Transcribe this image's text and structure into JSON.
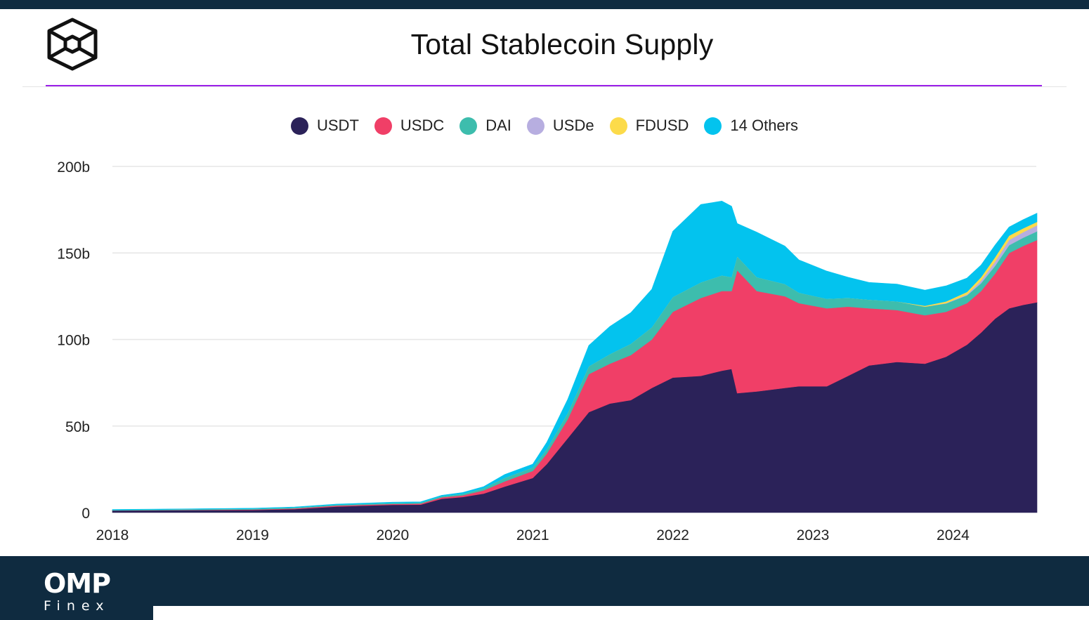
{
  "header": {
    "title": "Total Stablecoin Supply",
    "logo_icon": "the-block-cube-icon"
  },
  "footer": {
    "brand_main": "OMP",
    "brand_sub": "Finex"
  },
  "colors": {
    "top_bar": "#0f2b40",
    "accent_line": "#9b1fe8"
  },
  "chart_data": {
    "type": "area",
    "stacked": true,
    "title": "Total Stablecoin Supply",
    "xlabel": "",
    "ylabel": "",
    "unit": "billion USD",
    "ylim": [
      0,
      200
    ],
    "y_ticks": [
      {
        "value": 0,
        "label": "0"
      },
      {
        "value": 50,
        "label": "50b"
      },
      {
        "value": 100,
        "label": "100b"
      },
      {
        "value": 150,
        "label": "150b"
      },
      {
        "value": 200,
        "label": "200b"
      }
    ],
    "x_ticks": [
      "2018",
      "2019",
      "2020",
      "2021",
      "2022",
      "2023",
      "2024"
    ],
    "x_range": [
      2018.0,
      2024.6
    ],
    "legend_position": "top-center",
    "grid": true,
    "series": [
      {
        "name": "USDT",
        "color": "#2b2259",
        "points": [
          [
            2018.0,
            1.2
          ],
          [
            2019.0,
            1.5
          ],
          [
            2019.3,
            2.0
          ],
          [
            2019.6,
            3.5
          ],
          [
            2020.0,
            4.5
          ],
          [
            2020.2,
            4.6
          ],
          [
            2020.35,
            8
          ],
          [
            2020.5,
            9
          ],
          [
            2020.65,
            11
          ],
          [
            2020.8,
            15
          ],
          [
            2021.0,
            20
          ],
          [
            2021.1,
            28
          ],
          [
            2021.25,
            43
          ],
          [
            2021.4,
            58
          ],
          [
            2021.55,
            63
          ],
          [
            2021.7,
            65
          ],
          [
            2021.85,
            72
          ],
          [
            2022.0,
            78
          ],
          [
            2022.2,
            79
          ],
          [
            2022.35,
            82
          ],
          [
            2022.42,
            83
          ],
          [
            2022.46,
            69
          ],
          [
            2022.6,
            70
          ],
          [
            2022.8,
            72
          ],
          [
            2022.9,
            73
          ],
          [
            2023.1,
            73
          ],
          [
            2023.25,
            79
          ],
          [
            2023.4,
            85
          ],
          [
            2023.6,
            87
          ],
          [
            2023.8,
            86
          ],
          [
            2023.95,
            90
          ],
          [
            2024.1,
            97
          ],
          [
            2024.2,
            104
          ],
          [
            2024.3,
            112
          ],
          [
            2024.4,
            118
          ],
          [
            2024.5,
            120
          ],
          [
            2024.6,
            121.5
          ]
        ]
      },
      {
        "name": "USDC",
        "color": "#f03f67",
        "points": [
          [
            2018.0,
            0
          ],
          [
            2019.0,
            0.3
          ],
          [
            2019.3,
            0.4
          ],
          [
            2019.6,
            0.5
          ],
          [
            2020.0,
            0.5
          ],
          [
            2020.2,
            0.6
          ],
          [
            2020.35,
            0.8
          ],
          [
            2020.5,
            1
          ],
          [
            2020.65,
            1.8
          ],
          [
            2020.8,
            3
          ],
          [
            2021.0,
            4
          ],
          [
            2021.1,
            6
          ],
          [
            2021.25,
            11
          ],
          [
            2021.4,
            22
          ],
          [
            2021.55,
            23
          ],
          [
            2021.7,
            26
          ],
          [
            2021.85,
            28
          ],
          [
            2022.0,
            38
          ],
          [
            2022.2,
            45
          ],
          [
            2022.35,
            46
          ],
          [
            2022.42,
            45
          ],
          [
            2022.46,
            71
          ],
          [
            2022.6,
            58
          ],
          [
            2022.8,
            53
          ],
          [
            2022.9,
            48
          ],
          [
            2023.1,
            45
          ],
          [
            2023.25,
            40
          ],
          [
            2023.4,
            33
          ],
          [
            2023.6,
            30
          ],
          [
            2023.8,
            28
          ],
          [
            2023.95,
            26
          ],
          [
            2024.1,
            24
          ],
          [
            2024.2,
            24
          ],
          [
            2024.3,
            26
          ],
          [
            2024.4,
            32
          ],
          [
            2024.5,
            34
          ],
          [
            2024.6,
            36
          ]
        ]
      },
      {
        "name": "DAI",
        "color": "#3dbdad",
        "points": [
          [
            2018.0,
            0.3
          ],
          [
            2019.0,
            0.4
          ],
          [
            2019.3,
            0.5
          ],
          [
            2019.6,
            0.5
          ],
          [
            2020.0,
            0.5
          ],
          [
            2020.2,
            0.5
          ],
          [
            2020.35,
            0.6
          ],
          [
            2020.5,
            0.8
          ],
          [
            2020.65,
            1.2
          ],
          [
            2020.8,
            2
          ],
          [
            2021.0,
            2
          ],
          [
            2021.1,
            2.5
          ],
          [
            2021.25,
            3.5
          ],
          [
            2021.4,
            4.5
          ],
          [
            2021.55,
            5.5
          ],
          [
            2021.7,
            6.5
          ],
          [
            2021.85,
            7
          ],
          [
            2022.0,
            8.5
          ],
          [
            2022.2,
            9
          ],
          [
            2022.35,
            9
          ],
          [
            2022.42,
            8
          ],
          [
            2022.46,
            8
          ],
          [
            2022.6,
            8
          ],
          [
            2022.8,
            7
          ],
          [
            2022.9,
            6
          ],
          [
            2023.1,
            5.5
          ],
          [
            2023.25,
            5
          ],
          [
            2023.4,
            5
          ],
          [
            2023.6,
            5
          ],
          [
            2023.8,
            5
          ],
          [
            2023.95,
            4.8
          ],
          [
            2024.1,
            4.5
          ],
          [
            2024.2,
            4.5
          ],
          [
            2024.3,
            4.5
          ],
          [
            2024.4,
            4.5
          ],
          [
            2024.5,
            4.8
          ],
          [
            2024.6,
            5
          ]
        ]
      },
      {
        "name": "USDe",
        "color": "#b7aee0",
        "points": [
          [
            2018.0,
            0
          ],
          [
            2023.8,
            0
          ],
          [
            2023.95,
            0.2
          ],
          [
            2024.1,
            0.5
          ],
          [
            2024.2,
            1.5
          ],
          [
            2024.3,
            2.5
          ],
          [
            2024.4,
            3
          ],
          [
            2024.5,
            3.2
          ],
          [
            2024.6,
            3.5
          ]
        ]
      },
      {
        "name": "FDUSD",
        "color": "#fcdb4a",
        "points": [
          [
            2018.0,
            0
          ],
          [
            2023.6,
            0
          ],
          [
            2023.8,
            0.5
          ],
          [
            2023.95,
            1
          ],
          [
            2024.1,
            1.5
          ],
          [
            2024.2,
            2
          ],
          [
            2024.3,
            2.5
          ],
          [
            2024.4,
            2.5
          ],
          [
            2024.5,
            2.2
          ],
          [
            2024.6,
            2
          ]
        ]
      },
      {
        "name": "14 Others",
        "color": "#03c3ee",
        "points": [
          [
            2018.0,
            0.3
          ],
          [
            2019.0,
            0.3
          ],
          [
            2019.3,
            0.3
          ],
          [
            2019.6,
            0.4
          ],
          [
            2020.0,
            0.5
          ],
          [
            2020.2,
            0.5
          ],
          [
            2020.35,
            0.6
          ],
          [
            2020.5,
            0.8
          ],
          [
            2020.65,
            1
          ],
          [
            2020.8,
            2
          ],
          [
            2021.0,
            2
          ],
          [
            2021.1,
            4
          ],
          [
            2021.25,
            8
          ],
          [
            2021.4,
            12
          ],
          [
            2021.55,
            16
          ],
          [
            2021.7,
            18
          ],
          [
            2021.85,
            22
          ],
          [
            2022.0,
            38
          ],
          [
            2022.2,
            45
          ],
          [
            2022.35,
            43
          ],
          [
            2022.42,
            41
          ],
          [
            2022.46,
            19
          ],
          [
            2022.6,
            26
          ],
          [
            2022.8,
            22
          ],
          [
            2022.9,
            19
          ],
          [
            2023.1,
            16
          ],
          [
            2023.25,
            12
          ],
          [
            2023.4,
            10
          ],
          [
            2023.6,
            10
          ],
          [
            2023.8,
            9
          ],
          [
            2023.95,
            9
          ],
          [
            2024.1,
            8
          ],
          [
            2024.2,
            7
          ],
          [
            2024.3,
            7
          ],
          [
            2024.4,
            5
          ],
          [
            2024.5,
            5
          ],
          [
            2024.6,
            5
          ]
        ]
      }
    ]
  }
}
